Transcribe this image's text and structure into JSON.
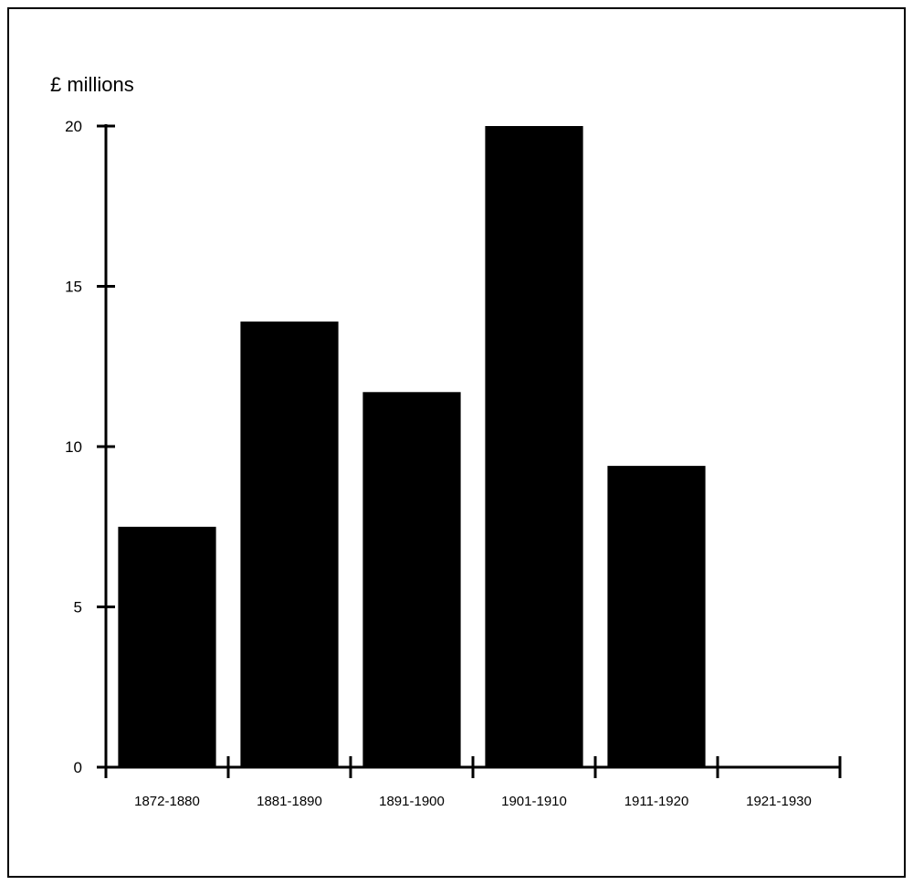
{
  "chart_data": {
    "type": "bar",
    "title": "",
    "xlabel": "",
    "ylabel": "£ millions",
    "ylim": [
      0,
      20
    ],
    "yticks": [
      0,
      5,
      10,
      15,
      20
    ],
    "grid": false,
    "bar_color": "#000000",
    "categories": [
      "1872-1880",
      "1881-1890",
      "1891-1900",
      "1901-1910",
      "1911-1920",
      "1921-1930"
    ],
    "values": [
      7.5,
      13.9,
      11.7,
      20.0,
      9.4,
      0
    ]
  }
}
